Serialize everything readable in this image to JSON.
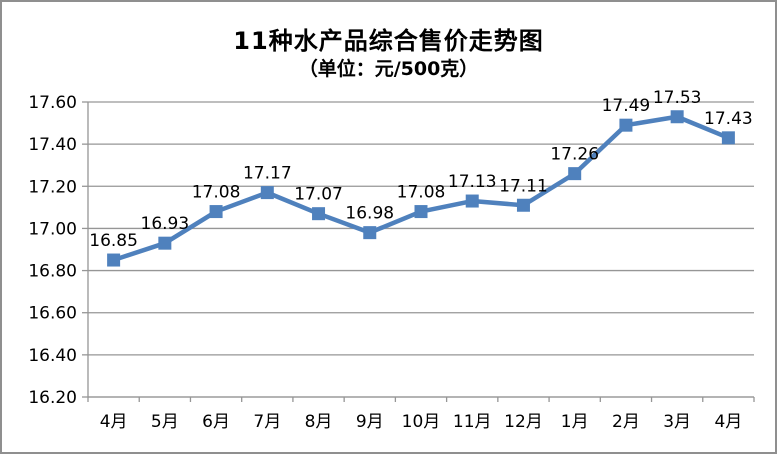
{
  "chart": {
    "title": "11种水产品综合售价走势图",
    "subtitle": "（单位：元/500克）"
  },
  "chart_data": {
    "type": "line",
    "title": "11种水产品综合售价走势图",
    "subtitle": "（单位：元/500克）",
    "categories": [
      "4月",
      "5月",
      "6月",
      "7月",
      "8月",
      "9月",
      "10月",
      "11月",
      "12月",
      "1月",
      "2月",
      "3月",
      "4月"
    ],
    "values": [
      16.85,
      16.93,
      17.08,
      17.17,
      17.07,
      16.98,
      17.08,
      17.13,
      17.11,
      17.26,
      17.49,
      17.53,
      17.43
    ],
    "data_labels": [
      "16.85",
      "16.93",
      "17.08",
      "17.17",
      "17.07",
      "16.98",
      "17.08",
      "17.13",
      "17.11",
      "17.26",
      "17.49",
      "17.53",
      "17.43"
    ],
    "xlabel": "",
    "ylabel": "",
    "ylim": [
      16.2,
      17.6
    ],
    "ytick_step": 0.2,
    "ytick_labels": [
      "17.60",
      "17.40",
      "17.20",
      "17.00",
      "16.80",
      "16.60",
      "16.40",
      "16.20"
    ],
    "grid": true,
    "legend_position": "none",
    "marker": "square",
    "colors": {
      "line": "#4F81BD",
      "marker": "#4F81BD",
      "gridline": "#969696",
      "axis": "#969696",
      "text": "#000000",
      "border": "#8F8F8F"
    }
  }
}
